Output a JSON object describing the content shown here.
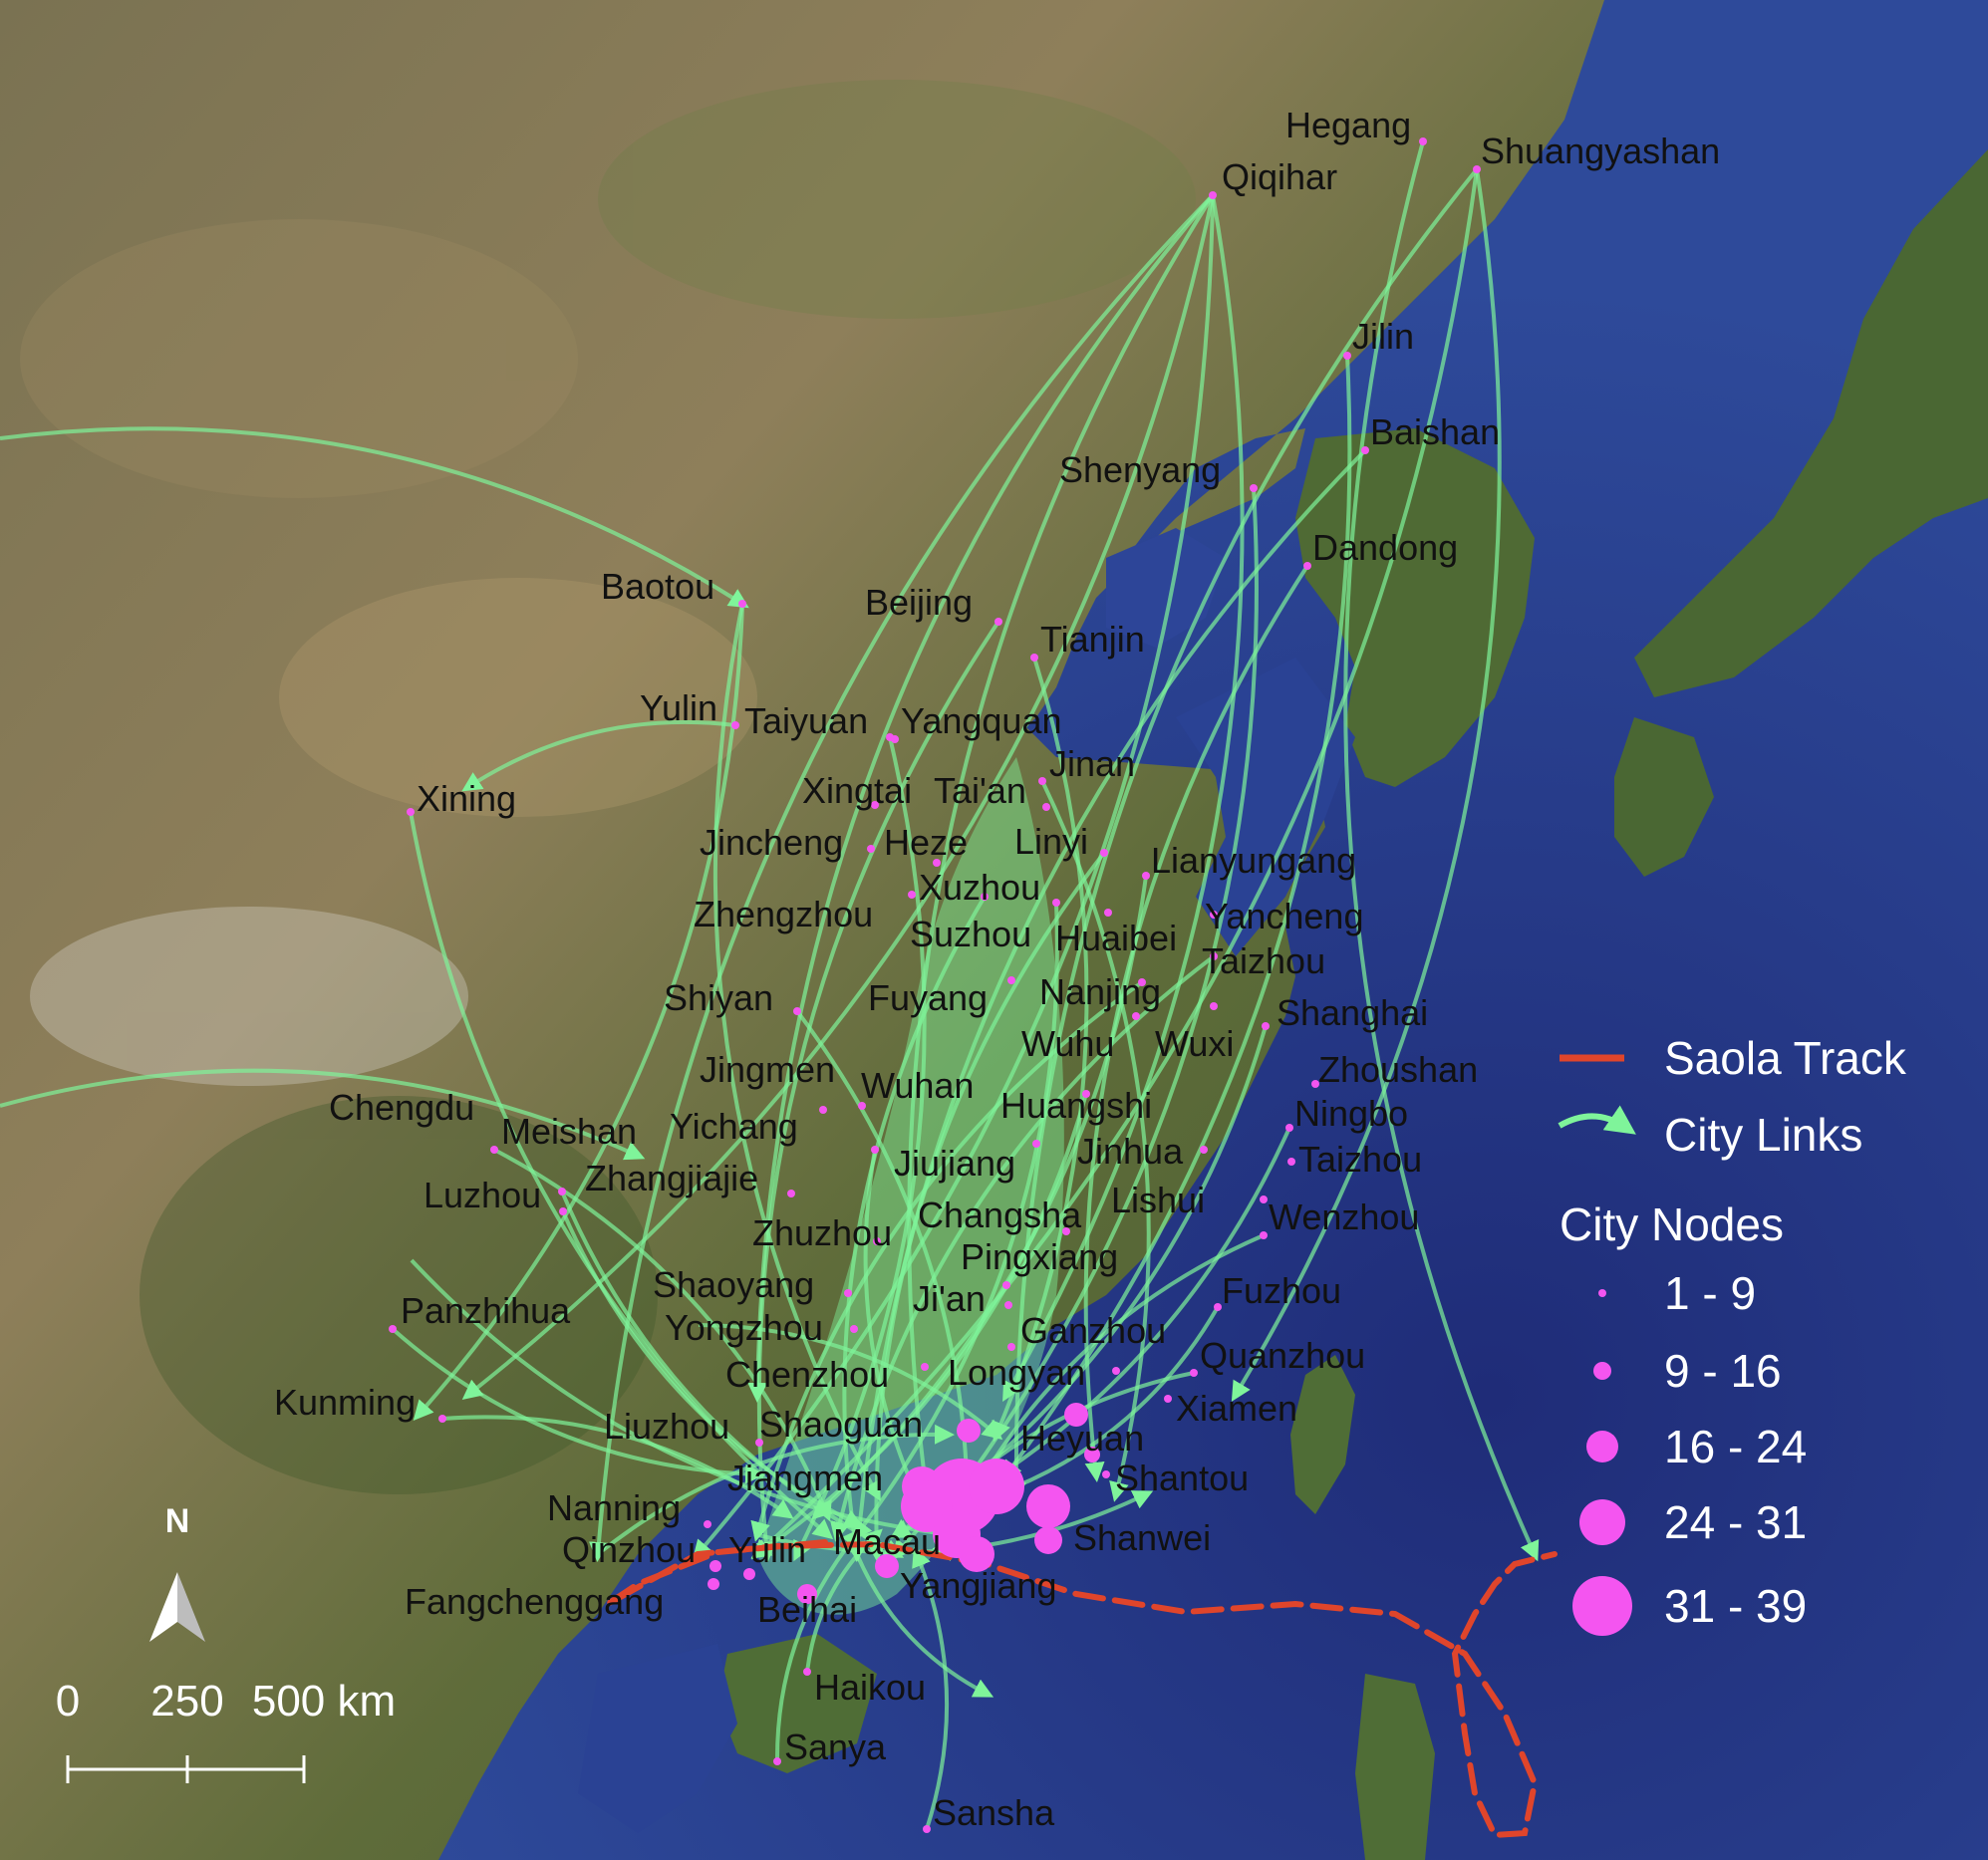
{
  "legend": {
    "track_label": "Saola Track",
    "links_label": "City Links",
    "nodes_title": "City Nodes",
    "classes": [
      "1 - 9",
      "9 - 16",
      "16 - 24",
      "24 - 31",
      "31 - 39"
    ]
  },
  "north_arrow_label": "N",
  "scale_bar": {
    "labels": [
      "0",
      "250",
      "500 km"
    ]
  },
  "colors": {
    "ocean": "#2a3f8f",
    "land": "#5b6a3a",
    "link": "#7ff49a",
    "node": "#f455f0",
    "track": "#e0452b"
  },
  "cities": [
    {
      "name": "Hegang"
    },
    {
      "name": "Shuangyashan"
    },
    {
      "name": "Qiqihar"
    },
    {
      "name": "Jilin"
    },
    {
      "name": "Baishan"
    },
    {
      "name": "Shenyang"
    },
    {
      "name": "Dandong"
    },
    {
      "name": "Baotou"
    },
    {
      "name": "Beijing"
    },
    {
      "name": "Tianjin"
    },
    {
      "name": "Yulin"
    },
    {
      "name": "Taiyuan"
    },
    {
      "name": "Yangquan"
    },
    {
      "name": "Jinan"
    },
    {
      "name": "Xining"
    },
    {
      "name": "Xingtai"
    },
    {
      "name": "Tai'an"
    },
    {
      "name": "Jincheng"
    },
    {
      "name": "Heze"
    },
    {
      "name": "Linyi"
    },
    {
      "name": "Lianyungang"
    },
    {
      "name": "Xuzhou"
    },
    {
      "name": "Zhengzhou"
    },
    {
      "name": "Yancheng"
    },
    {
      "name": "Suzhou"
    },
    {
      "name": "Huaibei"
    },
    {
      "name": "Taizhou"
    },
    {
      "name": "Shiyan"
    },
    {
      "name": "Fuyang"
    },
    {
      "name": "Nanjing"
    },
    {
      "name": "Shanghai"
    },
    {
      "name": "Wuhu"
    },
    {
      "name": "Wuxi"
    },
    {
      "name": "Jingmen"
    },
    {
      "name": "Zhoushan"
    },
    {
      "name": "Wuhan"
    },
    {
      "name": "Chengdu"
    },
    {
      "name": "Huangshi"
    },
    {
      "name": "Meishan"
    },
    {
      "name": "Yichang"
    },
    {
      "name": "Ningbo"
    },
    {
      "name": "Jiujiang"
    },
    {
      "name": "Jinhua"
    },
    {
      "name": "Taizhou"
    },
    {
      "name": "Luzhou"
    },
    {
      "name": "Zhangjiajie"
    },
    {
      "name": "Lishui"
    },
    {
      "name": "Changsha"
    },
    {
      "name": "Wenzhou"
    },
    {
      "name": "Zhuzhou"
    },
    {
      "name": "Pingxiang"
    },
    {
      "name": "Shaoyang"
    },
    {
      "name": "Fuzhou"
    },
    {
      "name": "Ji'an"
    },
    {
      "name": "Panzhihua"
    },
    {
      "name": "Yongzhou"
    },
    {
      "name": "Ganzhou"
    },
    {
      "name": "Quanzhou"
    },
    {
      "name": "Chenzhou"
    },
    {
      "name": "Longyan"
    },
    {
      "name": "Kunming"
    },
    {
      "name": "Xiamen"
    },
    {
      "name": "Liuzhou"
    },
    {
      "name": "Shaoguan"
    },
    {
      "name": "Heyuan"
    },
    {
      "name": "Shantou"
    },
    {
      "name": "Jiangmen"
    },
    {
      "name": "Nanning"
    },
    {
      "name": "Shanwei"
    },
    {
      "name": "Qinzhou"
    },
    {
      "name": "Yulin"
    },
    {
      "name": "Macau"
    },
    {
      "name": "Yangjiang"
    },
    {
      "name": "Fangchenggang"
    },
    {
      "name": "Beihai"
    },
    {
      "name": "Haikou"
    },
    {
      "name": "Sanya"
    },
    {
      "name": "Sansha"
    }
  ]
}
